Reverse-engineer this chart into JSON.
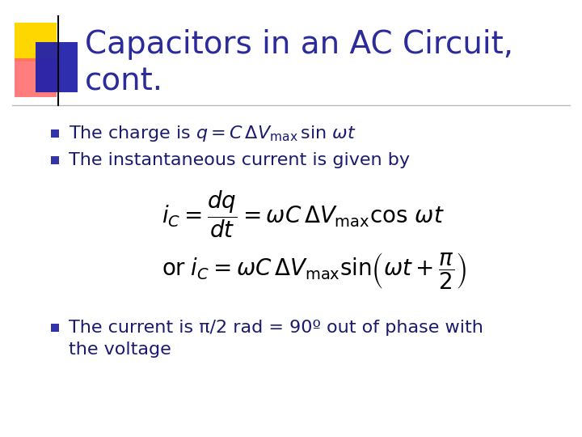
{
  "title_line1": "Capacitors in an AC Circuit,",
  "title_line2": "cont.",
  "title_color": "#2B2B9B",
  "title_fontsize": 28,
  "background_color": "#FFFFFF",
  "bullet_color": "#1A1A6E",
  "bullet_square_color": "#3333AA",
  "text_fontsize": 16,
  "math_fontsize": 17,
  "accent_yellow": "#FFD700",
  "accent_red": "#FF6666",
  "accent_blue": "#2222AA",
  "divider_color": "#BBBBBB",
  "bullet3_line1": "The current is π/2 rad = 90º out of phase with",
  "bullet3_line2": "the voltage"
}
